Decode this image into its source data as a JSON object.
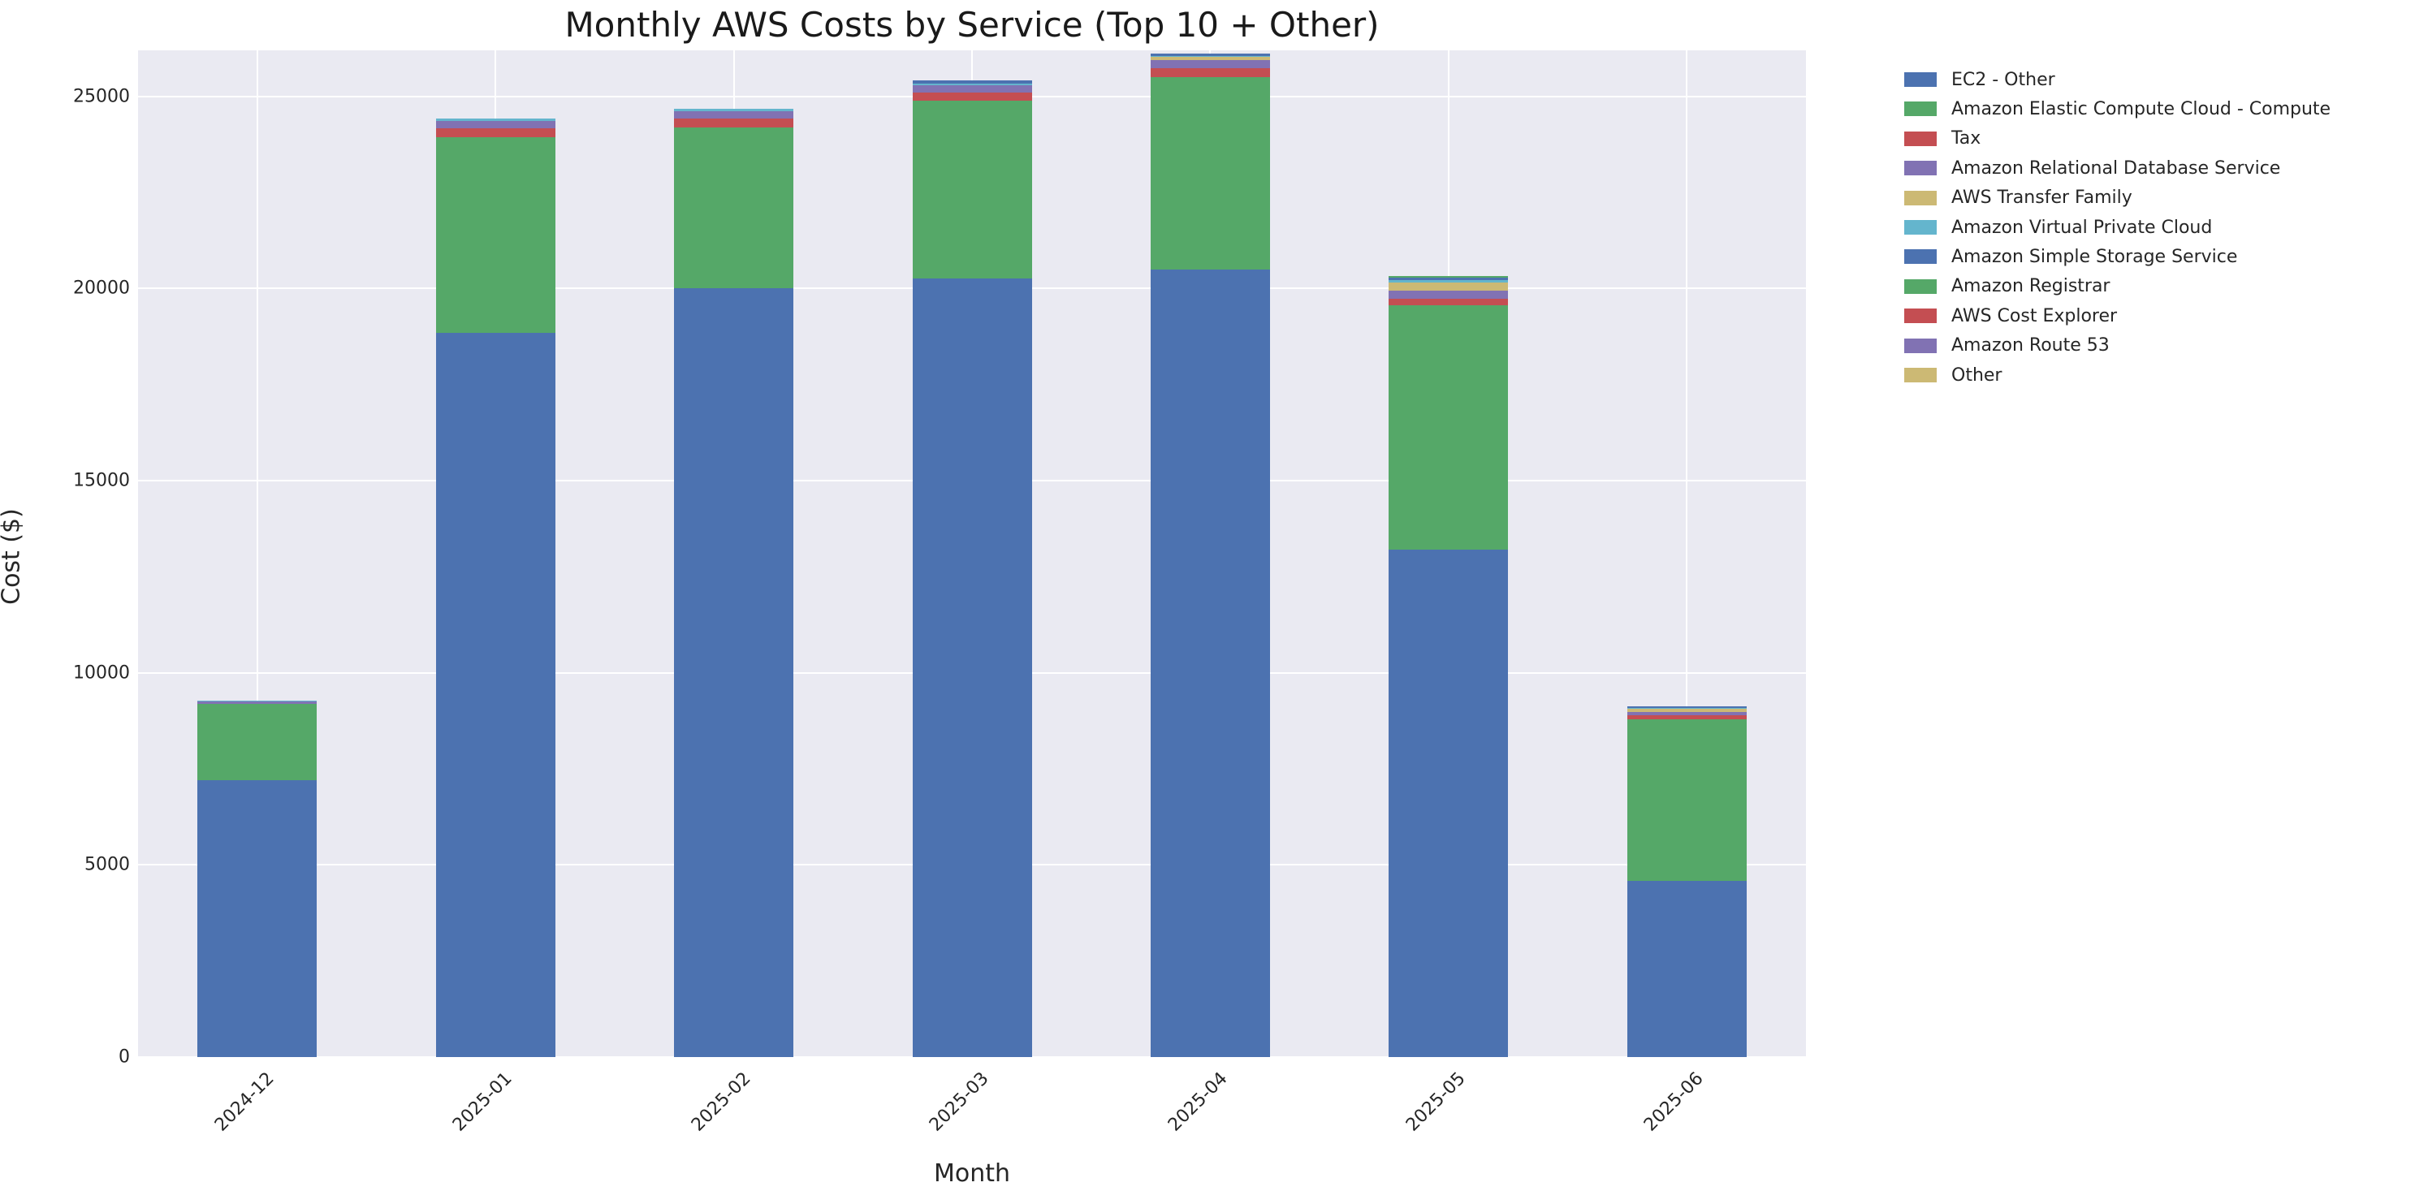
{
  "title": "Monthly AWS Costs by Service (Top 10 + Other)",
  "chart_data": {
    "type": "bar",
    "stacked": true,
    "title": "Monthly AWS Costs by Service (Top 10 + Other)",
    "xlabel": "Month",
    "ylabel": "Cost ($)",
    "categories": [
      "2024-12",
      "2025-01",
      "2025-02",
      "2025-03",
      "2025-04",
      "2025-05",
      "2025-06"
    ],
    "series": [
      {
        "name": "EC2 - Other",
        "color": "#4C72B0",
        "values": [
          7200,
          18840,
          20020,
          20260,
          20490,
          13210,
          4580
        ]
      },
      {
        "name": "Amazon Elastic Compute Cloud - Compute",
        "color": "#55A868",
        "values": [
          2000,
          5100,
          4180,
          4620,
          5010,
          6350,
          4210
        ]
      },
      {
        "name": "Tax",
        "color": "#C44E52",
        "values": [
          0,
          230,
          230,
          220,
          245,
          170,
          100
        ]
      },
      {
        "name": "Amazon Relational Database Service",
        "color": "#8172B3",
        "values": [
          60,
          190,
          190,
          190,
          200,
          225,
          100
        ]
      },
      {
        "name": "AWS Transfer Family",
        "color": "#CCB974",
        "values": [
          0,
          0,
          0,
          0,
          85,
          195,
          85
        ]
      },
      {
        "name": "Amazon Virtual Private Cloud",
        "color": "#64B5CD",
        "values": [
          25,
          60,
          50,
          35,
          25,
          80,
          20
        ]
      },
      {
        "name": "Amazon Simple Storage Service",
        "color": "#4C72B0",
        "values": [
          0,
          0,
          0,
          100,
          70,
          50,
          40
        ]
      },
      {
        "name": "Amazon Registrar",
        "color": "#55A868",
        "values": [
          0,
          0,
          0,
          0,
          0,
          45,
          0
        ]
      },
      {
        "name": "AWS Cost Explorer",
        "color": "#C44E52",
        "values": [
          0,
          0,
          0,
          0,
          0,
          0,
          0
        ]
      },
      {
        "name": "Amazon Route 53",
        "color": "#8172B3",
        "values": [
          0,
          0,
          0,
          0,
          0,
          0,
          0
        ]
      },
      {
        "name": "Other",
        "color": "#CCB974",
        "values": [
          0,
          0,
          0,
          0,
          0,
          0,
          0
        ]
      }
    ],
    "yticks": [
      0,
      5000,
      10000,
      15000,
      20000,
      25000
    ],
    "ylim": [
      0,
      26200
    ],
    "grid": true,
    "plot_bg": "#EAEAF2",
    "grid_color": "#FFFFFF",
    "legend_position": "outside-upper-right",
    "legend_entries": [
      "EC2 - Other",
      "Amazon Elastic Compute Cloud - Compute",
      "Tax",
      "Amazon Relational Database Service",
      "AWS Transfer Family",
      "Amazon Virtual Private Cloud",
      "Amazon Simple Storage Service",
      "Amazon Registrar",
      "AWS Cost Explorer",
      "Amazon Route 53",
      "Other"
    ]
  }
}
